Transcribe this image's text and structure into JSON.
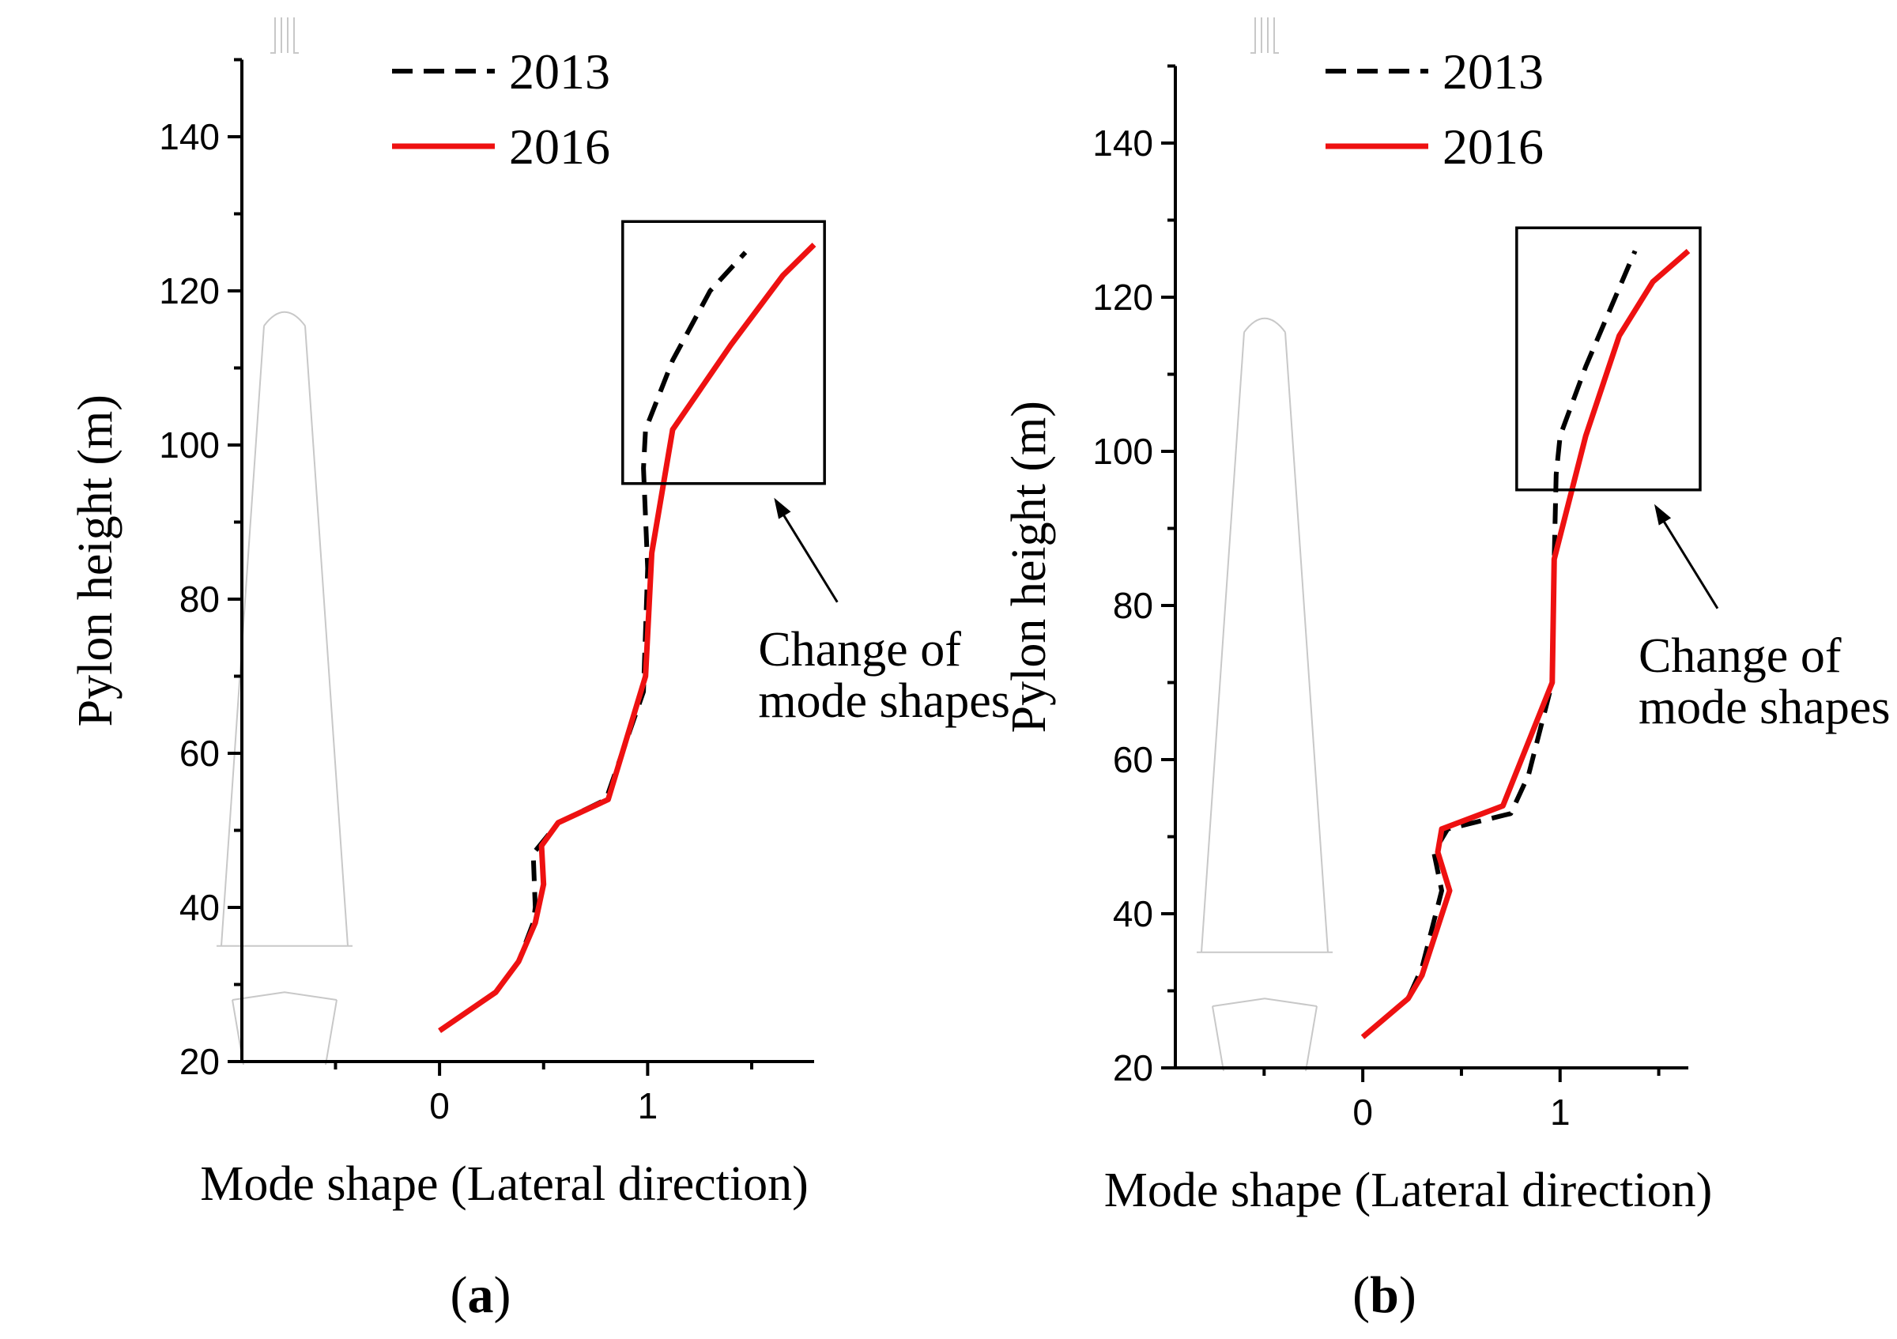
{
  "chart_data": [
    {
      "type": "line",
      "panel_label": "a",
      "xlabel": "Mode shape (Lateral direction)",
      "ylabel": "Pylon height (m)",
      "xlim": [
        -0.95,
        1.8
      ],
      "ylim": [
        20,
        150
      ],
      "xticks": [
        0,
        1
      ],
      "xtick_labels": [
        "0",
        "1"
      ],
      "yticks": [
        20,
        40,
        60,
        80,
        100,
        120,
        140
      ],
      "ytick_labels": [
        "20",
        "40",
        "60",
        "80",
        "100",
        "120",
        "140"
      ],
      "legend": [
        "2013",
        "2016"
      ],
      "legend_position": "top",
      "annotation": [
        "Change of",
        "mode shapes"
      ],
      "highlight_box": {
        "x": [
          0.88,
          1.85
        ],
        "y": [
          95,
          129
        ]
      },
      "series": [
        {
          "name": "2013",
          "style": "dashed",
          "color": "#000000",
          "points": [
            [
              0,
              24
            ],
            [
              0.27,
              29
            ],
            [
              0.38,
              33
            ],
            [
              0.45,
              38
            ],
            [
              0.46,
              40
            ],
            [
              0.45,
              47
            ],
            [
              0.57,
              51
            ],
            [
              0.8,
              54
            ],
            [
              0.98,
              68
            ],
            [
              1.0,
              84
            ],
            [
              0.98,
              97
            ],
            [
              0.99,
              102
            ],
            [
              1.12,
              111
            ],
            [
              1.3,
              120
            ],
            [
              1.47,
              125
            ]
          ]
        },
        {
          "name": "2016",
          "style": "solid",
          "color": "#ee1111",
          "points": [
            [
              0,
              24
            ],
            [
              0.27,
              29
            ],
            [
              0.38,
              33
            ],
            [
              0.46,
              38
            ],
            [
              0.5,
              43
            ],
            [
              0.49,
              48
            ],
            [
              0.57,
              51
            ],
            [
              0.81,
              54
            ],
            [
              0.99,
              70
            ],
            [
              1.02,
              86
            ],
            [
              1.12,
              102
            ],
            [
              1.4,
              113
            ],
            [
              1.65,
              122
            ],
            [
              1.8,
              126
            ]
          ]
        }
      ]
    },
    {
      "type": "line",
      "panel_label": "b",
      "xlabel": "Mode shape (Lateral direction)",
      "ylabel": "Pylon height (m)",
      "xlim": [
        -0.95,
        1.65
      ],
      "ylim": [
        20,
        150
      ],
      "xticks": [
        0,
        1
      ],
      "xtick_labels": [
        "0",
        "1"
      ],
      "yticks": [
        20,
        40,
        60,
        80,
        100,
        120,
        140
      ],
      "ytick_labels": [
        "20",
        "40",
        "60",
        "80",
        "100",
        "120",
        "140"
      ],
      "legend": [
        "2013",
        "2016"
      ],
      "legend_position": "top",
      "annotation": [
        "Change of",
        "mode shapes"
      ],
      "highlight_box": {
        "x": [
          0.78,
          1.71
        ],
        "y": [
          95,
          129
        ]
      },
      "series": [
        {
          "name": "2013",
          "style": "dashed",
          "color": "#000000",
          "points": [
            [
              0,
              24
            ],
            [
              0.23,
              29
            ],
            [
              0.3,
              33
            ],
            [
              0.36,
              39
            ],
            [
              0.4,
              43
            ],
            [
              0.36,
              48
            ],
            [
              0.43,
              51
            ],
            [
              0.75,
              53
            ],
            [
              0.84,
              58
            ],
            [
              0.96,
              70
            ],
            [
              0.97,
              86
            ],
            [
              0.98,
              97
            ],
            [
              1.0,
              102
            ],
            [
              1.13,
              111
            ],
            [
              1.28,
              120
            ],
            [
              1.38,
              126
            ]
          ]
        },
        {
          "name": "2016",
          "style": "solid",
          "color": "#ee1111",
          "points": [
            [
              0,
              24
            ],
            [
              0.23,
              29
            ],
            [
              0.3,
              32
            ],
            [
              0.44,
              43
            ],
            [
              0.38,
              48
            ],
            [
              0.4,
              51
            ],
            [
              0.71,
              54
            ],
            [
              0.96,
              70
            ],
            [
              0.97,
              86
            ],
            [
              1.13,
              102
            ],
            [
              1.3,
              115
            ],
            [
              1.47,
              122
            ],
            [
              1.65,
              126
            ]
          ]
        }
      ]
    }
  ]
}
